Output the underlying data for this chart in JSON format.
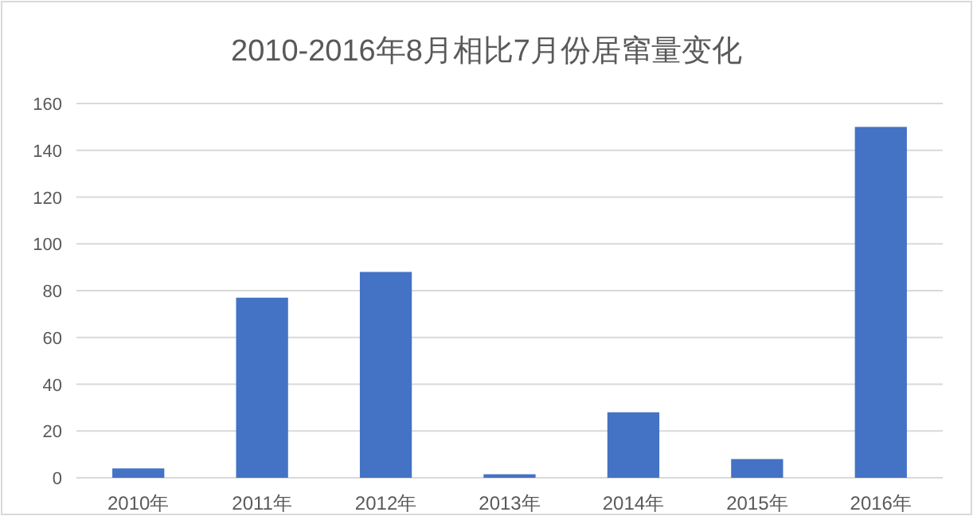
{
  "chart_data": {
    "type": "bar",
    "title": "2010-2016年8月相比7月份居窜量变化",
    "categories": [
      "2010年",
      "2011年",
      "2012年",
      "2013年",
      "2014年",
      "2015年",
      "2016年"
    ],
    "values": [
      4,
      77,
      88,
      1.5,
      28,
      8,
      150
    ],
    "color": "#4472c4",
    "ylim": [
      0,
      160
    ],
    "yticks": [
      0,
      20,
      40,
      60,
      80,
      100,
      120,
      140,
      160
    ],
    "grid": "y"
  }
}
